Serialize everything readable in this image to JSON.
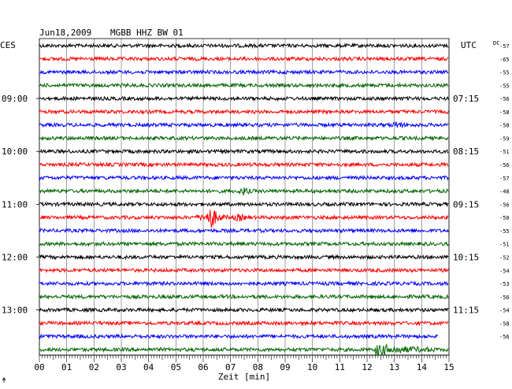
{
  "header": {
    "date": "Jun18,2009",
    "station": "MGBB HHZ BW 01",
    "left_zone": "CES",
    "right_zone": "UTC",
    "dc_label": "DC"
  },
  "colors": {
    "trace_cycle": [
      "#000000",
      "#ff0000",
      "#0000ff",
      "#006400"
    ],
    "grid": "#000000",
    "background": "#ffffff"
  },
  "chart_data": {
    "type": "line",
    "title": "Jun18,2009 MGBB HHZ BW 01",
    "xlabel": "Zeit [min]",
    "xlim": [
      0,
      15
    ],
    "x_ticks": [
      "00",
      "01",
      "02",
      "03",
      "04",
      "05",
      "06",
      "07",
      "08",
      "09",
      "10",
      "11",
      "12",
      "13",
      "14",
      "15"
    ],
    "trace_count": 24,
    "minutes_per_trace": 15,
    "left_hour_labels": [
      {
        "trace": 4,
        "label": "09:00"
      },
      {
        "trace": 8,
        "label": "10:00"
      },
      {
        "trace": 12,
        "label": "11:00"
      },
      {
        "trace": 16,
        "label": "12:00"
      },
      {
        "trace": 20,
        "label": "13:00"
      }
    ],
    "right_time_labels": [
      {
        "trace": 4,
        "label": "07:15"
      },
      {
        "trace": 8,
        "label": "08:15"
      },
      {
        "trace": 12,
        "label": "09:15"
      },
      {
        "trace": 16,
        "label": "10:15"
      },
      {
        "trace": 20,
        "label": "11:15"
      }
    ],
    "dc_offsets": [
      "-57",
      "-65",
      "-55",
      "-55",
      "-56",
      "-58",
      "-58",
      "-59",
      "-51",
      "-56",
      "-57",
      "-48",
      "-56",
      "-50",
      "-55",
      "-51",
      "-52",
      "-54",
      "-53",
      "-56",
      "-54",
      "-58",
      "-56"
    ],
    "events": [
      {
        "trace": 13,
        "minute": 6.3,
        "amplitude": "large"
      },
      {
        "trace": 11,
        "minute": 7.5,
        "amplitude": "small"
      },
      {
        "trace": 13,
        "minute": 7.3,
        "amplitude": "small"
      },
      {
        "trace": 6,
        "minute": 13.1,
        "amplitude": "small"
      },
      {
        "trace": 23,
        "minute": 12.3,
        "amplitude": "medium-long"
      }
    ],
    "partial_trace": {
      "trace": 22,
      "end_minute": 14.6
    }
  }
}
